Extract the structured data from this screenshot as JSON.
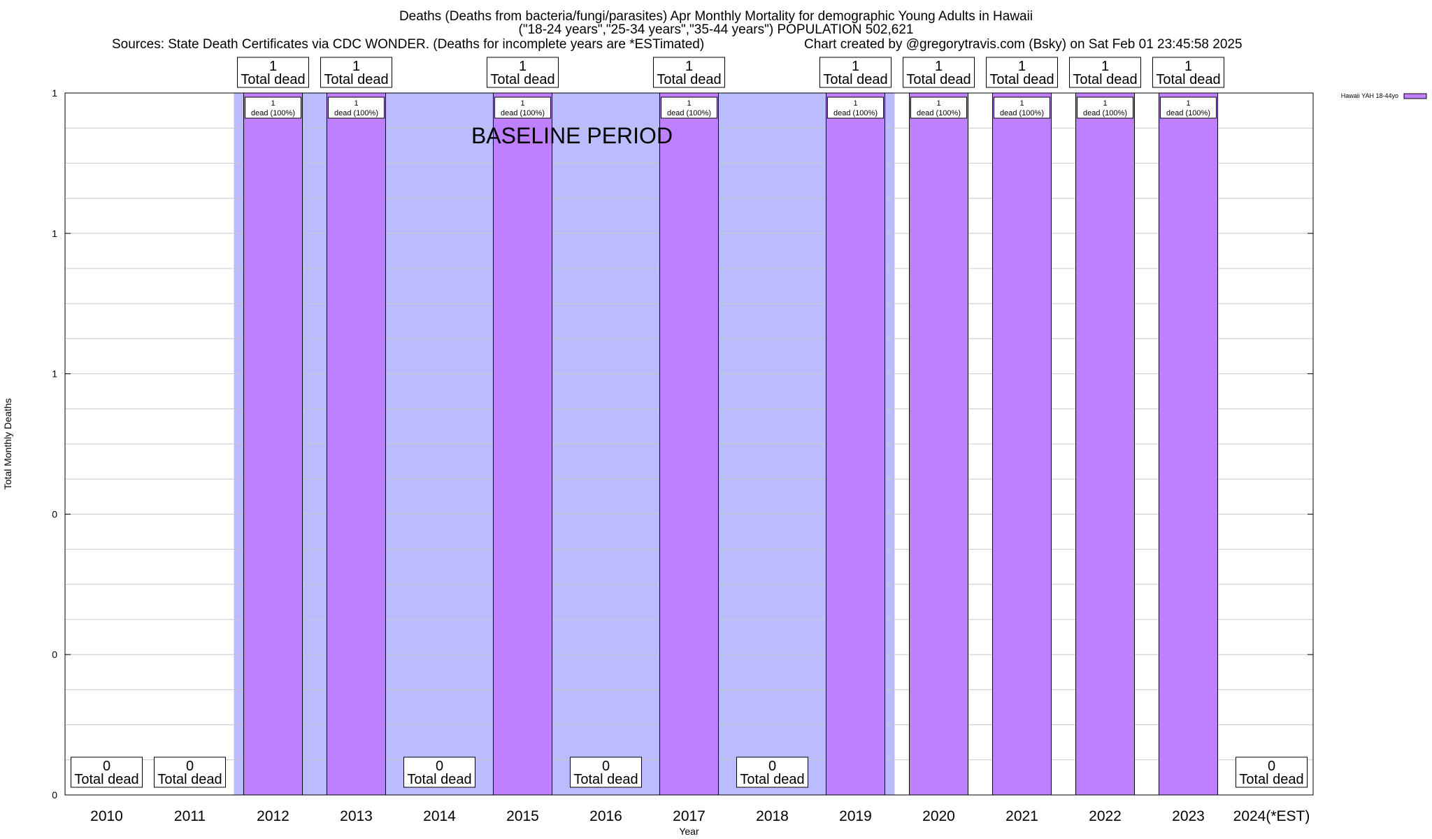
{
  "chart_data": {
    "type": "bar",
    "title_lines": [
      "Deaths (Deaths from bacteria/fungi/parasites) Apr Monthly Mortality for demographic Young Adults in Hawaii",
      "(\"18-24 years\",\"25-34 years\",\"35-44 years\") POPULATION 502,621"
    ],
    "sources": "Sources: State Death Certificates via CDC WONDER. (Deaths for incomplete years are *ESTimated)",
    "credit": "Chart created by @gregorytravis.com (Bsky) on Sat Feb 01 23:45:58 2025",
    "xlabel": "Year",
    "ylabel": "Total Monthly Deaths",
    "categories": [
      "2010",
      "2011",
      "2012",
      "2013",
      "2014",
      "2015",
      "2016",
      "2017",
      "2018",
      "2019",
      "2020",
      "2021",
      "2022",
      "2023",
      "2024(*EST)"
    ],
    "series": [
      {
        "name": "Hawaii YAH 18-44yo",
        "color": "#bf80ff",
        "values": [
          0,
          0,
          1,
          1,
          0,
          1,
          0,
          1,
          0,
          1,
          1,
          1,
          1,
          1,
          0
        ]
      }
    ],
    "ylim": [
      0,
      1
    ],
    "y_tick_labels": [
      "0",
      "0",
      "0",
      "1",
      "1",
      "1"
    ],
    "total_label_word": "Total dead",
    "bar_label_suffix": "dead (100%)",
    "baseline_label": "BASELINE PERIOD",
    "baseline_years": [
      "2012",
      "2013",
      "2014",
      "2015",
      "2016",
      "2017",
      "2018",
      "2019"
    ],
    "shade_color": "#bbbbff",
    "grid": true,
    "legend_position": "top-right"
  }
}
